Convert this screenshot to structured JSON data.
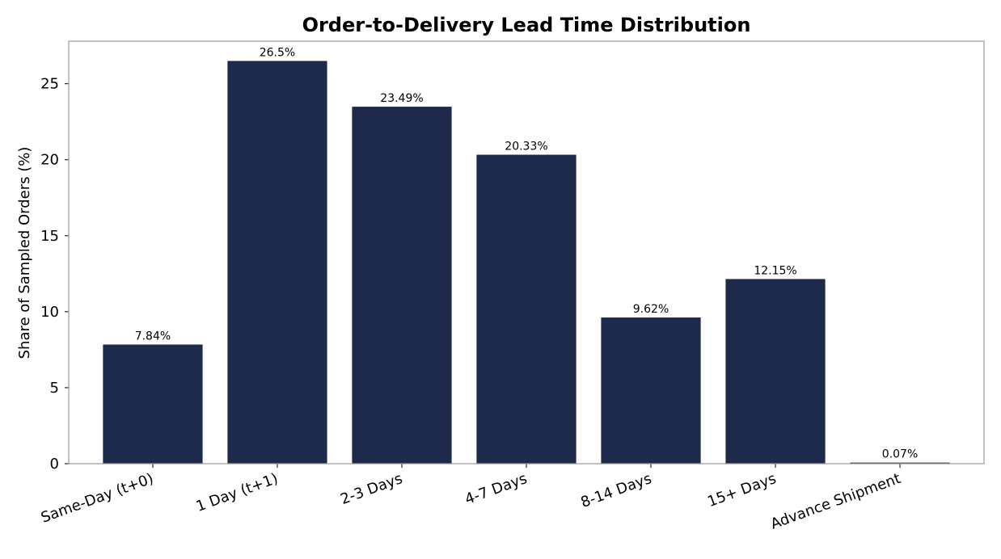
{
  "chart_data": {
    "type": "bar",
    "title": "Order-to-Delivery Lead Time Distribution",
    "xlabel": "",
    "ylabel": "Share of Sampled Orders (%)",
    "categories": [
      "Same-Day (t+0)",
      "1 Day (t+1)",
      "2-3 Days",
      "4-7 Days",
      "8-14 Days",
      "15+ Days",
      "Advance Shipment"
    ],
    "values": [
      7.84,
      26.5,
      23.49,
      20.33,
      9.62,
      12.15,
      0.07
    ],
    "value_labels": [
      "7.84%",
      "26.5%",
      "23.49%",
      "20.33%",
      "9.62%",
      "12.15%",
      "0.07%"
    ],
    "ylim": [
      0,
      27.8
    ],
    "yticks": [
      0,
      5,
      10,
      15,
      20,
      25
    ],
    "ytick_labels": [
      "0",
      "5",
      "10",
      "15",
      "20",
      "25"
    ],
    "grid": false,
    "legend": "none",
    "colors": {
      "bar": "#1d2a4b",
      "frame": "#999999",
      "text": "#000000"
    }
  }
}
